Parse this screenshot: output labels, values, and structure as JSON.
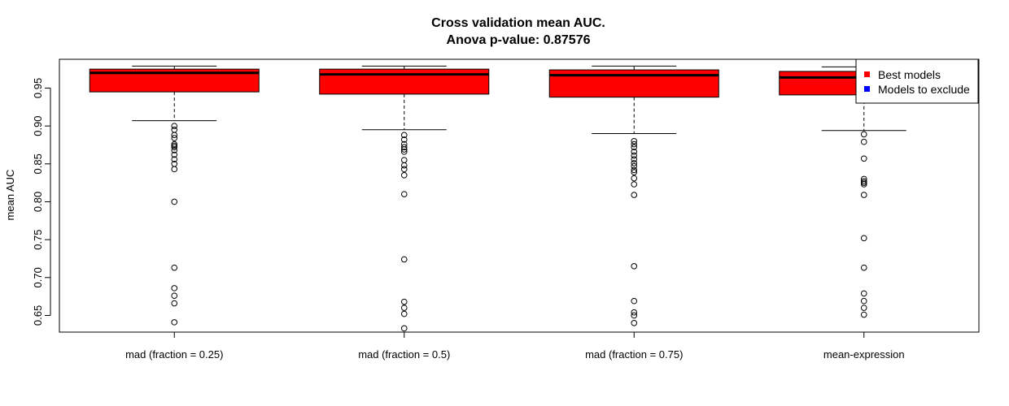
{
  "chart_data": {
    "type": "boxplot",
    "title_line1": "Cross validation mean AUC.",
    "title_line2": "Anova p-value: 0.87576",
    "xlabel": "",
    "ylabel": "mean AUC",
    "ylim": [
      0.628,
      0.988
    ],
    "yticks": [
      0.65,
      0.7,
      0.75,
      0.8,
      0.85,
      0.9,
      0.95
    ],
    "ytick_labels": [
      "0.65",
      "0.70",
      "0.75",
      "0.80",
      "0.85",
      "0.90",
      "0.95"
    ],
    "grid": false,
    "categories": [
      "mad (fraction = 0.25)",
      "mad (fraction = 0.5)",
      "mad (fraction = 0.75)",
      "mean-expression"
    ],
    "boxes": [
      {
        "whisker_low": 0.907,
        "q1": 0.945,
        "median": 0.97,
        "q3": 0.975,
        "whisker_high": 0.979,
        "outliers": [
          0.9,
          0.895,
          0.888,
          0.884,
          0.876,
          0.874,
          0.872,
          0.868,
          0.862,
          0.856,
          0.85,
          0.843,
          0.8,
          0.713,
          0.686,
          0.676,
          0.666,
          0.641
        ]
      },
      {
        "whisker_low": 0.895,
        "q1": 0.942,
        "median": 0.968,
        "q3": 0.975,
        "whisker_high": 0.979,
        "outliers": [
          0.888,
          0.882,
          0.876,
          0.872,
          0.869,
          0.866,
          0.855,
          0.848,
          0.843,
          0.835,
          0.81,
          0.724,
          0.668,
          0.66,
          0.652,
          0.633
        ]
      },
      {
        "whisker_low": 0.89,
        "q1": 0.938,
        "median": 0.967,
        "q3": 0.974,
        "whisker_high": 0.979,
        "outliers": [
          0.88,
          0.876,
          0.872,
          0.866,
          0.861,
          0.856,
          0.851,
          0.847,
          0.842,
          0.839,
          0.831,
          0.823,
          0.809,
          0.715,
          0.669,
          0.654,
          0.65,
          0.64
        ]
      },
      {
        "whisker_low": 0.894,
        "q1": 0.941,
        "median": 0.964,
        "q3": 0.972,
        "whisker_high": 0.978,
        "outliers": [
          0.889,
          0.879,
          0.857,
          0.83,
          0.827,
          0.825,
          0.823,
          0.809,
          0.752,
          0.713,
          0.679,
          0.669,
          0.66,
          0.651
        ]
      }
    ],
    "box_color": "#ff0000",
    "legend": {
      "placement": "top-right",
      "entries": [
        {
          "label": "Best models",
          "color": "#ff0000"
        },
        {
          "label": "Models to exclude",
          "color": "#0000ff"
        }
      ]
    }
  }
}
